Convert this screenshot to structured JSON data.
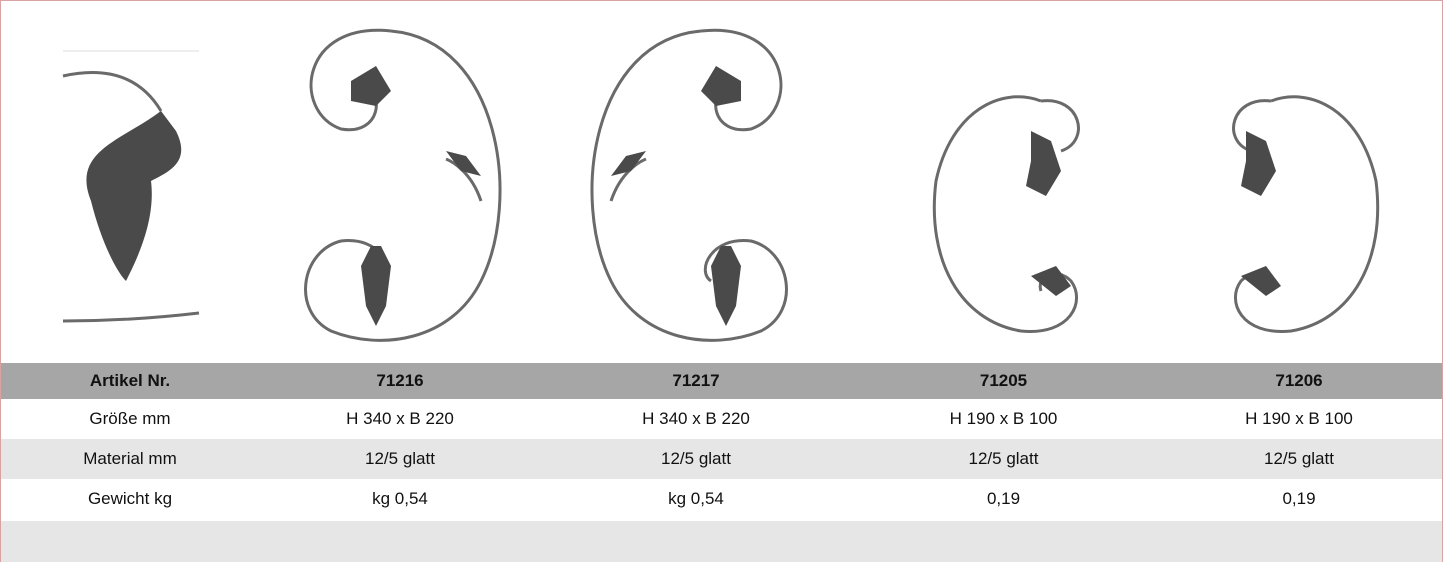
{
  "table": {
    "header": [
      "Artikel Nr.",
      "71216",
      "71217",
      "71205",
      "71206"
    ],
    "rows": [
      [
        "Größe mm",
        "H 340 x B 220",
        "H 340 x B 220",
        "H 190 x B 100",
        "H 190 x B 100"
      ],
      [
        "Material mm",
        "12/5 glatt",
        "12/5 glatt",
        "12/5 glatt",
        "12/5 glatt"
      ],
      [
        "Gewicht kg",
        "kg 0,54",
        "kg 0,54",
        "0,19",
        "0,19"
      ]
    ]
  }
}
